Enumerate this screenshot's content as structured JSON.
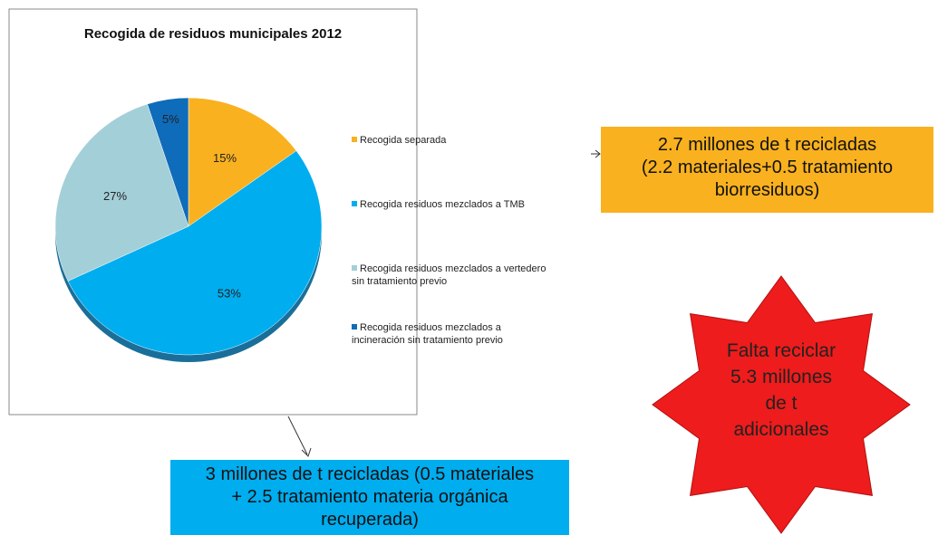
{
  "chart_data": {
    "type": "pie",
    "title": "Recogida de residuos municipales 2012",
    "categories": [
      "Recogida separada",
      "Recogida residuos mezclados a TMB",
      "Recogida residuos mezclados a vertedero sin tratamiento previo",
      "Recogida residuos mezclados a incineración sin tratamiento previo"
    ],
    "values": [
      15,
      53,
      27,
      5
    ],
    "value_labels": [
      "15%",
      "53%",
      "27%",
      "5%"
    ],
    "colors": [
      "#f9b11f",
      "#00adef",
      "#a3cfd8",
      "#0f6cba"
    ],
    "legend": "right"
  },
  "callouts": {
    "recycled_separate": [
      "2.7 millones  de t recicladas",
      "(2.2 materiales+0.5 tratamiento",
      "biorresiduos)"
    ],
    "recycled_mixed": [
      "3 millones  de t recicladas  (0.5 materiales",
      "+ 2.5 tratamiento materia orgánica",
      "recuperada)"
    ],
    "missing": [
      "Falta reciclar",
      "5.3 millones",
      "de t",
      "adicionales"
    ]
  }
}
